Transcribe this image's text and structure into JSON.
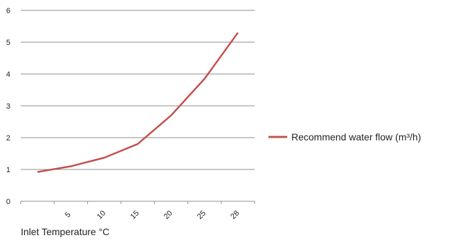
{
  "chart_data": {
    "type": "line",
    "categories": [
      "",
      "5",
      "10",
      "15",
      "20",
      "25",
      "28"
    ],
    "series": [
      {
        "name": "Recommend water flow (m³/h)",
        "values": [
          0.92,
          1.1,
          1.37,
          1.8,
          2.7,
          3.85,
          5.3
        ],
        "color": "#c0504d"
      }
    ],
    "xlabel": "Inlet Temperature °C",
    "ylabel": "",
    "ylim": [
      0,
      6
    ],
    "yticks": [
      "0",
      "1",
      "2",
      "3",
      "4",
      "5",
      "6"
    ],
    "grid": true,
    "legend_position": "right"
  }
}
